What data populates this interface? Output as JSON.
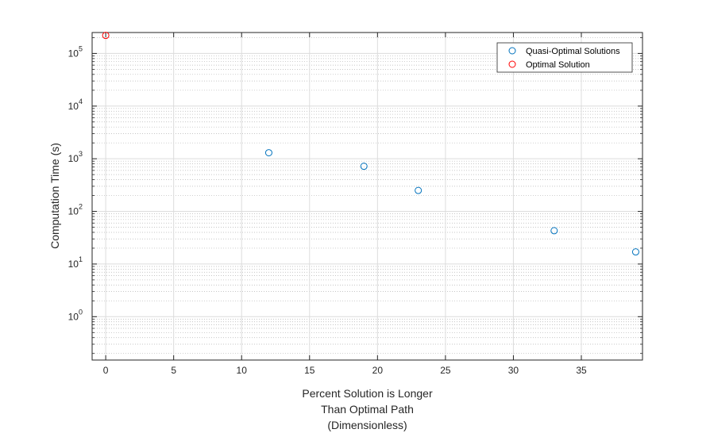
{
  "chart_data": {
    "type": "scatter",
    "xscale": "linear",
    "yscale": "log",
    "xlim": [
      -1,
      39.5
    ],
    "ylim": [
      0.15,
      250000
    ],
    "xticks": [
      0,
      5,
      10,
      15,
      20,
      25,
      30,
      35
    ],
    "yticks_exponents": [
      0,
      1,
      2,
      3,
      4,
      5
    ],
    "ytick_base": "10",
    "xlabel": [
      "Percent Solution is Longer",
      "Than Optimal Path",
      "(Dimensionless)"
    ],
    "ylabel": "Computation Time (s)",
    "grid": true,
    "minor_grid": true,
    "legend_position": "top-right",
    "series": [
      {
        "name": "Quasi-Optimal Solutions",
        "color": "#0072BD",
        "marker": "circle",
        "x": [
          12,
          19,
          23,
          33,
          39
        ],
        "y": [
          1300,
          720,
          250,
          43,
          17
        ]
      },
      {
        "name": "Optimal Solution",
        "color": "#FF0000",
        "marker": "circle",
        "x": [
          0
        ],
        "y": [
          220000
        ]
      }
    ]
  }
}
